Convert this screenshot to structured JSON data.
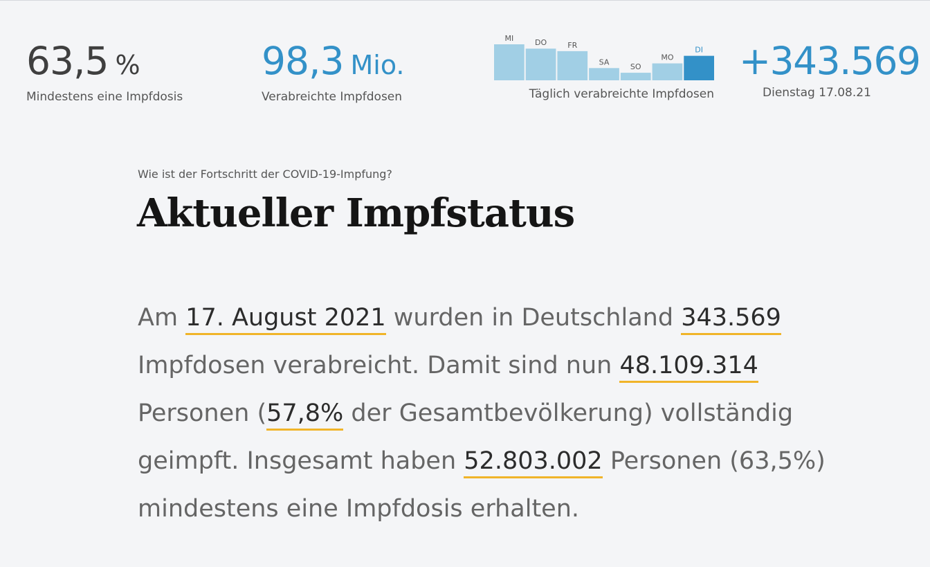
{
  "stats": {
    "first_dose": {
      "value": "63,5",
      "unit": "%",
      "label": "Mindestens eine Impfdosis"
    },
    "total_doses": {
      "value": "98,3",
      "unit": "Mio.",
      "label": "Verabreichte Impfdosen"
    },
    "daily": {
      "value": "+343.569",
      "label": "Dienstag 17.08.21"
    }
  },
  "mini_chart": {
    "label": "Täglich verabreichte Impfdosen",
    "days": [
      "MI",
      "DO",
      "FR",
      "SA",
      "SO",
      "MO",
      "DI"
    ],
    "values": [
      1.0,
      0.88,
      0.81,
      0.34,
      0.21,
      0.47,
      0.68
    ],
    "highlight_index": 6,
    "bar_color": "#a1cfe5",
    "highlight_color": "#3391c8"
  },
  "article": {
    "kicker": "Wie ist der Fortschritt der COVID-19-Impfung?",
    "title": "Aktueller Impfstatus",
    "t1": "Am ",
    "date": "17. August 2021",
    "t2": " wurden in Deutschland ",
    "doses": "343.569",
    "t3": " Impfdosen verabreicht. Damit sind nun ",
    "fully": "48.109.314",
    "t4": " Personen (",
    "fully_pct": "57,8%",
    "t5": " der Gesamtbevölkerung) vollständig geimpft. Insgesamt haben ",
    "at_least_one": "52.803.002",
    "t6": " Personen (63,5%) mindestens eine Impfdosis erhalten."
  },
  "colors": {
    "accent": "#3391c8",
    "highlight_underline": "#f0b429",
    "background": "#f4f5f7"
  }
}
